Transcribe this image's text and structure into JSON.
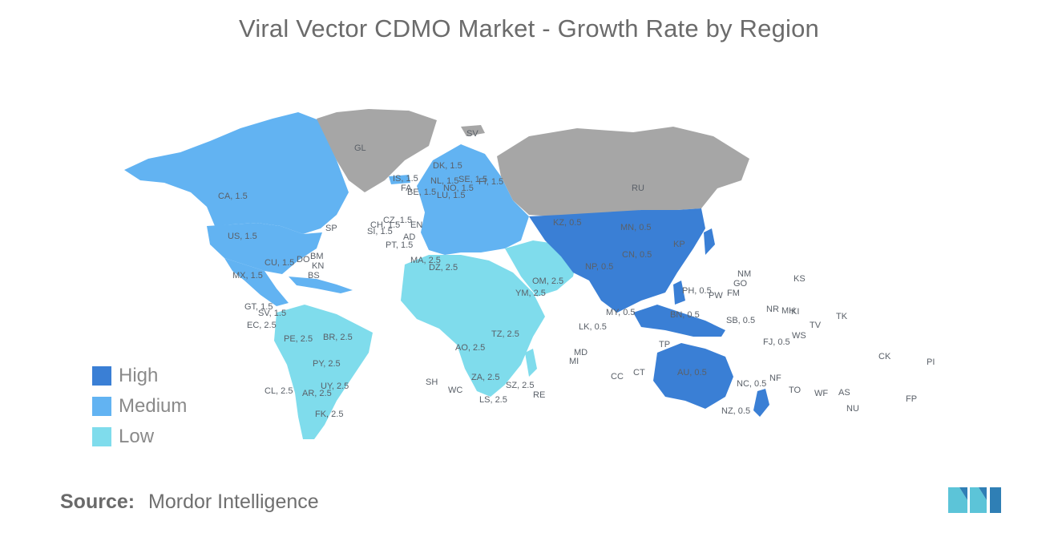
{
  "title": "Viral Vector CDMO Market - Growth Rate by Region",
  "colors": {
    "high": "#3a7fd5",
    "medium": "#62b3f2",
    "low": "#7fdcec",
    "nodata": "#a6a6a6"
  },
  "legend": [
    {
      "label": "High",
      "color": "#3a7fd5"
    },
    {
      "label": "Medium",
      "color": "#62b3f2"
    },
    {
      "label": "Low",
      "color": "#7fdcec"
    }
  ],
  "map_labels": [
    "GL",
    "RU",
    "SV",
    "CA, 1.5",
    "US, 1.5",
    "MX, 1.5",
    "CU, 1.5",
    "BR, 2.5",
    "CL, 2.5",
    "AR, 2.5",
    "UY, 2.5",
    "FK, 2.5",
    "PE, 2.5",
    "PY, 2.5",
    "EC, 2.5",
    "CN, 0.5",
    "MN, 0.5",
    "KZ, 0.5",
    "AU, 0.5",
    "NZ, 0.5",
    "PH, 0.5",
    "MY, 0.5",
    "LK, 0.5",
    "NP, 0.5",
    "DK, 1.5",
    "IS, 1.5",
    "SE, 1.5",
    "FI, 1.5",
    "NO, 1.5",
    "NL, 1.5",
    "BE, 1.5",
    "CZ, 1.5",
    "CH, 1.5",
    "SI, 1.5",
    "PT, 1.5",
    "LU, 1.5",
    "DZ, 2.5",
    "MA, 2.5",
    "ZA, 2.5",
    "LS, 2.5",
    "SZ, 2.5",
    "TZ, 2.5",
    "AO, 2.5",
    "YM, 2.5",
    "OM, 2.5",
    "NC, 0.5",
    "SB, 0.5",
    "FJ, 0.5",
    "BN, 0.5",
    "SP",
    "MD",
    "MI",
    "CC",
    "CT",
    "SH",
    "WC",
    "RE",
    "NM",
    "GO",
    "FM",
    "KS",
    "NR",
    "MH",
    "KI",
    "TK",
    "TV",
    "WS",
    "NF",
    "TO",
    "WF",
    "AS",
    "NU",
    "CK",
    "PI",
    "FP",
    "PW",
    "TP",
    "KP",
    "FA",
    "AD",
    "EN",
    "BM",
    "KN",
    "DO",
    "BS",
    "GT, 1.5",
    "SV, 1.5"
  ],
  "source": {
    "label": "Source:",
    "value": "Mordor Intelligence"
  }
}
